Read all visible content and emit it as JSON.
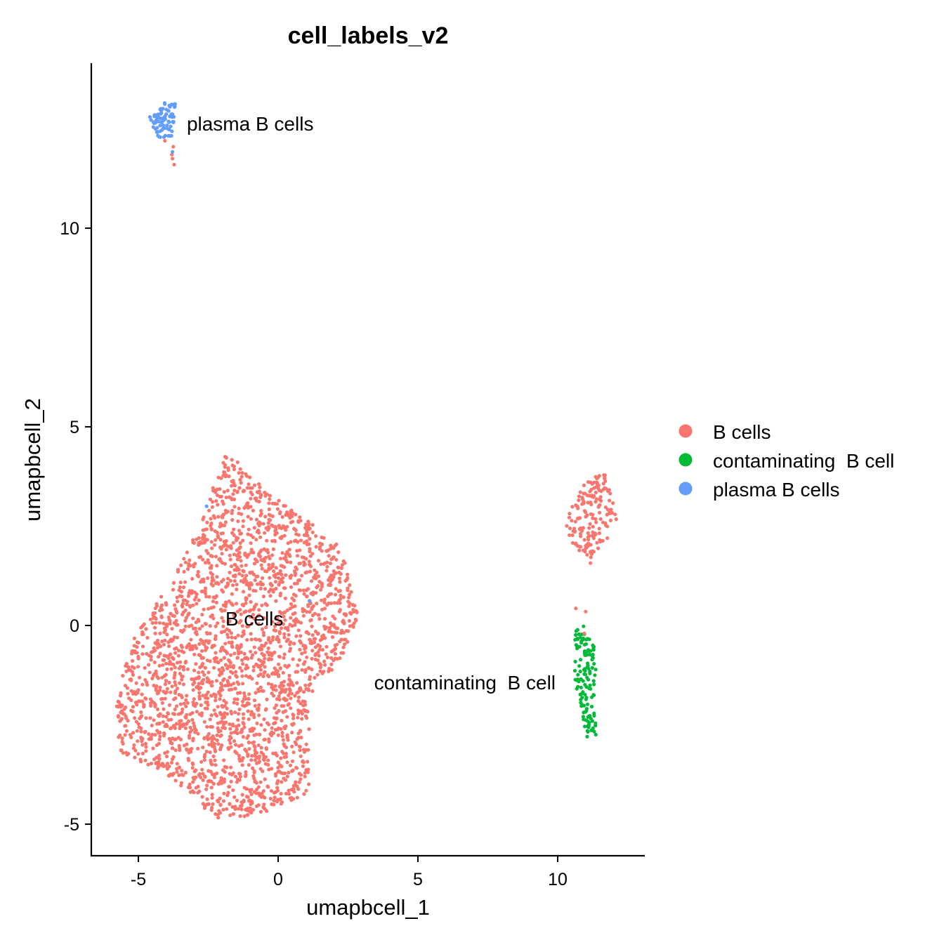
{
  "chart_data": {
    "type": "scatter",
    "title": "cell_labels_v2",
    "xlabel": "umapbcell_1",
    "ylabel": "umapbcell_2",
    "xlim": [
      -6.7,
      13.1
    ],
    "ylim": [
      -5.8,
      14.15
    ],
    "xticks": [
      -5,
      0,
      5,
      10
    ],
    "yticks": [
      -5,
      0,
      5,
      10
    ],
    "xtick_labels": [
      "-5",
      "0",
      "5",
      "10"
    ],
    "ytick_labels": [
      "-5",
      "0",
      "5",
      "10"
    ],
    "grid": false,
    "legend": {
      "placement": "right",
      "entries": [
        {
          "label": "B cells",
          "color": "#F8766D"
        },
        {
          "label": "contaminating  B cell",
          "color": "#00BA38"
        },
        {
          "label": "plasma B cells",
          "color": "#619CFF"
        }
      ]
    },
    "cluster_labels": [
      {
        "text": "plasma B cells",
        "x": -1.0,
        "y": 12.63
      },
      {
        "text": "B cells",
        "x": -0.85,
        "y": 0.18
      },
      {
        "text": "contaminating  B cell",
        "x": 6.68,
        "y": -1.43
      }
    ],
    "clusters": [
      {
        "series": "B cells",
        "color": "#F8766D",
        "n": 2500,
        "region": [
          [
            -1.78,
            4.43
          ],
          [
            -1.28,
            3.99
          ],
          [
            -0.4,
            3.37
          ],
          [
            0.85,
            2.76
          ],
          [
            1.61,
            2.31
          ],
          [
            2.24,
            1.96
          ],
          [
            2.61,
            1.08
          ],
          [
            2.86,
            0.19
          ],
          [
            2.24,
            -0.87
          ],
          [
            1.11,
            -1.75
          ],
          [
            1.11,
            -4.22
          ],
          [
            -0.65,
            -4.75
          ],
          [
            -2.16,
            -4.93
          ],
          [
            -3.17,
            -4.22
          ],
          [
            -4.17,
            -3.69
          ],
          [
            -5.68,
            -3.16
          ],
          [
            -5.8,
            -1.93
          ],
          [
            -5.3,
            -0.51
          ],
          [
            -4.55,
            0.37
          ],
          [
            -3.42,
            1.61
          ],
          [
            -2.54,
            3.02
          ],
          [
            -2.04,
            4.08
          ]
        ]
      },
      {
        "series": "B cells",
        "color": "#F8766D",
        "n": 160,
        "region": [
          [
            10.28,
            2.67
          ],
          [
            10.9,
            3.55
          ],
          [
            11.66,
            3.9
          ],
          [
            11.86,
            3.37
          ],
          [
            12.29,
            2.4
          ],
          [
            11.66,
            2.14
          ],
          [
            11.16,
            1.61
          ],
          [
            10.4,
            2.14
          ]
        ]
      },
      {
        "series": "contaminating  B cell",
        "color": "#00BA38",
        "n": 130,
        "region": [
          [
            10.6,
            -0.16
          ],
          [
            10.9,
            0.02
          ],
          [
            11.41,
            -0.69
          ],
          [
            11.28,
            -1.93
          ],
          [
            11.41,
            -2.81
          ],
          [
            11.03,
            -2.81
          ],
          [
            10.78,
            -1.93
          ],
          [
            10.53,
            -1.22
          ]
        ]
      },
      {
        "series": "plasma B cells",
        "color": "#619CFF",
        "n": 80,
        "region": [
          [
            -4.67,
            12.74
          ],
          [
            -4.05,
            13.22
          ],
          [
            -3.67,
            13.18
          ],
          [
            -3.79,
            12.21
          ],
          [
            -4.3,
            12.3
          ]
        ]
      }
    ],
    "extra_points": [
      {
        "series": "B cells",
        "color": "#F8766D",
        "points": [
          [
            -3.75,
            12.05
          ],
          [
            -3.8,
            11.85
          ],
          [
            -3.72,
            11.6
          ],
          [
            -4.05,
            12.2
          ],
          [
            -3.78,
            11.75
          ],
          [
            11.17,
            1.57
          ],
          [
            10.65,
            0.43
          ],
          [
            11.0,
            0.35
          ],
          [
            10.95,
            -0.2
          ],
          [
            11.3,
            3.6
          ],
          [
            11.4,
            3.7
          ]
        ]
      },
      {
        "series": "plasma B cells",
        "color": "#619CFF",
        "points": [
          [
            -2.56,
            3.0
          ],
          [
            1.12,
            0.62
          ],
          [
            -3.78,
            11.92
          ]
        ]
      }
    ]
  }
}
